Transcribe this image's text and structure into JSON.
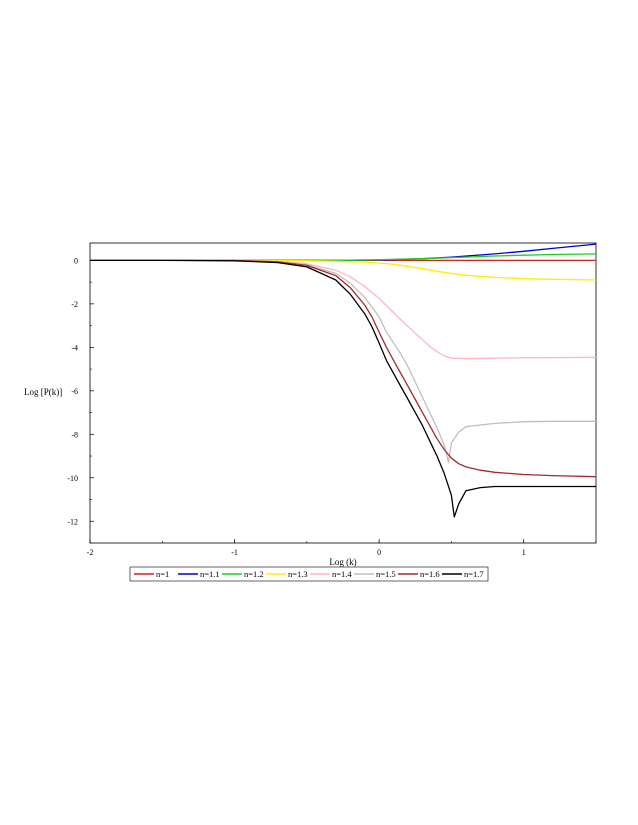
{
  "chart_data": {
    "type": "line",
    "title": "",
    "xlabel": "Log (k)",
    "ylabel": "Log [P(k)]",
    "xlim": [
      -2,
      1.5
    ],
    "ylim": [
      -13,
      0.8
    ],
    "x_ticks": [
      "-2",
      "-1",
      "0",
      "1"
    ],
    "y_ticks": [
      "0",
      "-2",
      "-4",
      "-6",
      "-8",
      "-10",
      "-12"
    ],
    "grid": false,
    "legend_position": "bottom",
    "series": [
      {
        "name": "n=1",
        "color": "#cc2222",
        "x": [
          -2,
          -1.5,
          -1,
          -0.5,
          0,
          0.5,
          1,
          1.5
        ],
        "y": [
          0,
          0,
          0,
          0,
          0,
          0,
          0,
          0
        ]
      },
      {
        "name": "n=1.1",
        "color": "#0000cc",
        "x": [
          -2,
          -1.5,
          -1,
          -0.5,
          -0.2,
          0,
          0.3,
          0.5,
          0.8,
          1.0,
          1.2,
          1.5
        ],
        "y": [
          0,
          0,
          0,
          0,
          0,
          0.02,
          0.08,
          0.15,
          0.3,
          0.42,
          0.55,
          0.75
        ]
      },
      {
        "name": "n=1.2",
        "color": "#22cc22",
        "x": [
          -2,
          -1.5,
          -1,
          -0.5,
          -0.2,
          0,
          0.3,
          0.5,
          0.8,
          1.0,
          1.2,
          1.5
        ],
        "y": [
          0,
          0,
          0,
          0,
          0.01,
          0.03,
          0.08,
          0.13,
          0.2,
          0.24,
          0.27,
          0.3
        ]
      },
      {
        "name": "n=1.3",
        "color": "#ffee00",
        "x": [
          -2,
          -1.5,
          -1,
          -0.5,
          -0.3,
          -0.1,
          0,
          0.1,
          0.2,
          0.3,
          0.4,
          0.5,
          0.6,
          0.8,
          1.0,
          1.2,
          1.5
        ],
        "y": [
          0,
          0,
          0,
          -0.02,
          -0.04,
          -0.08,
          -0.12,
          -0.18,
          -0.27,
          -0.38,
          -0.5,
          -0.6,
          -0.68,
          -0.78,
          -0.84,
          -0.87,
          -0.9
        ]
      },
      {
        "name": "n=1.4",
        "color": "#ffb6c1",
        "x": [
          -2,
          -1.5,
          -1,
          -0.7,
          -0.5,
          -0.3,
          -0.2,
          -0.1,
          0,
          0.1,
          0.2,
          0.25,
          0.3,
          0.35,
          0.4,
          0.45,
          0.5,
          0.6,
          0.8,
          1.0,
          1.2,
          1.5
        ],
        "y": [
          0,
          0,
          0,
          -0.05,
          -0.15,
          -0.45,
          -0.75,
          -1.2,
          -1.75,
          -2.4,
          -3.05,
          -3.35,
          -3.65,
          -3.95,
          -4.2,
          -4.4,
          -4.5,
          -4.52,
          -4.5,
          -4.48,
          -4.47,
          -4.46
        ]
      },
      {
        "name": "n=1.5",
        "color": "#c0c0c0",
        "x": [
          -2,
          -1.5,
          -1,
          -0.7,
          -0.5,
          -0.3,
          -0.2,
          -0.1,
          0,
          0.05,
          0.1,
          0.15,
          0.2,
          0.25,
          0.3,
          0.35,
          0.4,
          0.45,
          0.48,
          0.5,
          0.55,
          0.6,
          0.8,
          1.0,
          1.2,
          1.5
        ],
        "y": [
          0,
          0,
          0,
          -0.06,
          -0.2,
          -0.6,
          -1.05,
          -1.7,
          -2.6,
          -3.3,
          -3.8,
          -4.3,
          -4.9,
          -5.6,
          -6.3,
          -7.0,
          -7.7,
          -8.5,
          -9.3,
          -8.4,
          -7.9,
          -7.65,
          -7.5,
          -7.42,
          -7.4,
          -7.4
        ]
      },
      {
        "name": "n=1.6",
        "color": "#a52a2a",
        "x": [
          -2,
          -1.5,
          -1,
          -0.7,
          -0.5,
          -0.3,
          -0.2,
          -0.1,
          -0.05,
          0,
          0.05,
          0.1,
          0.15,
          0.2,
          0.25,
          0.3,
          0.35,
          0.4,
          0.45,
          0.5,
          0.55,
          0.6,
          0.7,
          0.8,
          1.0,
          1.2,
          1.5
        ],
        "y": [
          0,
          0,
          0,
          -0.07,
          -0.23,
          -0.7,
          -1.25,
          -2.05,
          -2.6,
          -3.3,
          -4.0,
          -4.6,
          -5.2,
          -5.8,
          -6.4,
          -7.0,
          -7.6,
          -8.2,
          -8.7,
          -9.1,
          -9.35,
          -9.5,
          -9.65,
          -9.75,
          -9.85,
          -9.9,
          -9.95
        ]
      },
      {
        "name": "n=1.7",
        "color": "#000000",
        "x": [
          -2,
          -1.5,
          -1,
          -0.7,
          -0.5,
          -0.3,
          -0.2,
          -0.1,
          -0.05,
          0,
          0.05,
          0.1,
          0.15,
          0.2,
          0.25,
          0.3,
          0.35,
          0.4,
          0.45,
          0.5,
          0.52,
          0.55,
          0.6,
          0.7,
          0.8,
          1.0,
          1.2,
          1.5
        ],
        "y": [
          0,
          0,
          -0.02,
          -0.1,
          -0.3,
          -0.9,
          -1.55,
          -2.45,
          -3.05,
          -3.8,
          -4.6,
          -5.2,
          -5.8,
          -6.4,
          -7.0,
          -7.6,
          -8.3,
          -9.0,
          -9.8,
          -10.8,
          -11.8,
          -11.2,
          -10.6,
          -10.45,
          -10.4,
          -10.4,
          -10.4,
          -10.4
        ]
      }
    ]
  }
}
